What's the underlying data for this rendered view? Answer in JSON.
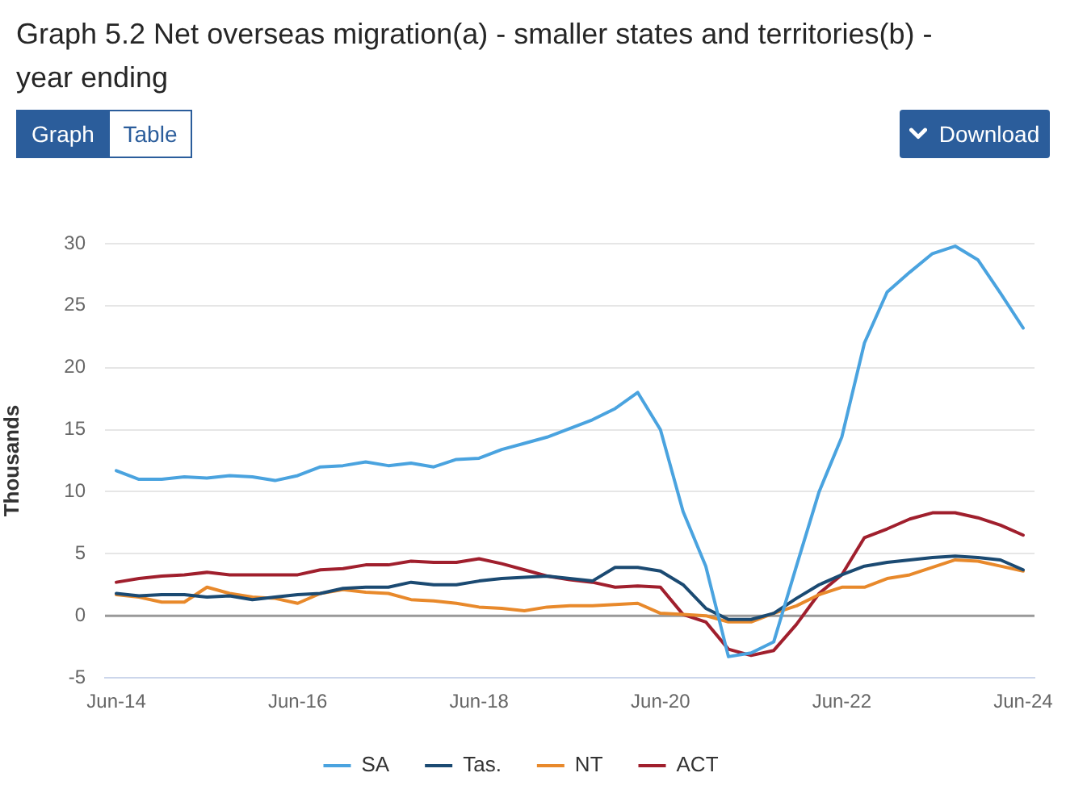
{
  "chart_data": {
    "type": "line",
    "title": "Graph 5.2 Net overseas migration(a) - smaller states and territories(b) - year ending",
    "ylabel": "Thousands",
    "annotations": [
      "Graph",
      "Table",
      "Download"
    ],
    "categories": [
      "Jun-14",
      null,
      null,
      null,
      null,
      null,
      null,
      null,
      "Jun-16",
      null,
      null,
      null,
      null,
      null,
      null,
      null,
      "Jun-18",
      null,
      null,
      null,
      null,
      null,
      null,
      null,
      "Jun-20",
      null,
      null,
      null,
      null,
      null,
      null,
      null,
      "Jun-22",
      null,
      null,
      null,
      null,
      null,
      null,
      null,
      "Jun-24"
    ],
    "series": [
      {
        "name": "SA",
        "color": "#4aa3df",
        "values": [
          11.7,
          11.0,
          11.0,
          11.2,
          11.1,
          11.3,
          11.2,
          10.9,
          11.3,
          12.0,
          12.1,
          12.4,
          12.1,
          12.3,
          12.0,
          12.6,
          12.7,
          13.4,
          13.9,
          14.4,
          15.1,
          15.8,
          16.7,
          18.0,
          15.0,
          8.4,
          4.0,
          -3.3,
          -3.0,
          -2.1,
          4.0,
          10.0,
          14.4,
          22.0,
          26.1,
          27.7,
          29.2,
          29.8,
          28.7,
          26.0,
          23.2
        ]
      },
      {
        "name": "Tas.",
        "color": "#1b4a72",
        "values": [
          1.8,
          1.6,
          1.7,
          1.7,
          1.5,
          1.6,
          1.3,
          1.5,
          1.7,
          1.8,
          2.2,
          2.3,
          2.3,
          2.7,
          2.5,
          2.5,
          2.8,
          3.0,
          3.1,
          3.2,
          3.0,
          2.8,
          3.9,
          3.9,
          3.6,
          2.5,
          0.6,
          -0.3,
          -0.3,
          0.2,
          1.4,
          2.5,
          3.3,
          4.0,
          4.3,
          4.5,
          4.7,
          4.8,
          4.7,
          4.5,
          3.7
        ]
      },
      {
        "name": "NT",
        "color": "#e8892b",
        "values": [
          1.7,
          1.5,
          1.1,
          1.1,
          2.3,
          1.8,
          1.5,
          1.4,
          1.0,
          1.8,
          2.1,
          1.9,
          1.8,
          1.3,
          1.2,
          1.0,
          0.7,
          0.6,
          0.4,
          0.7,
          0.8,
          0.8,
          0.9,
          1.0,
          0.2,
          0.1,
          0.0,
          -0.5,
          -0.5,
          0.2,
          0.8,
          1.7,
          2.3,
          2.3,
          3.0,
          3.3,
          3.9,
          4.5,
          4.4,
          4.0,
          3.6
        ]
      },
      {
        "name": "ACT",
        "color": "#a01f2d",
        "values": [
          2.7,
          3.0,
          3.2,
          3.3,
          3.5,
          3.3,
          3.3,
          3.3,
          3.3,
          3.7,
          3.8,
          4.1,
          4.1,
          4.4,
          4.3,
          4.3,
          4.6,
          4.2,
          3.7,
          3.2,
          2.9,
          2.7,
          2.3,
          2.4,
          2.3,
          0.1,
          -0.5,
          -2.7,
          -3.2,
          -2.8,
          -0.7,
          1.8,
          3.3,
          6.3,
          7.0,
          7.8,
          8.3,
          8.3,
          7.9,
          7.3,
          6.5
        ]
      }
    ],
    "ylim": [
      -5,
      30
    ],
    "yticks": [
      -5,
      0,
      5,
      10,
      15,
      20,
      25,
      30
    ],
    "ref_lines": [
      {
        "axis": "y",
        "value": 0,
        "color": "#999999"
      }
    ],
    "grid": "y",
    "legend": "bottom",
    "marker": "none",
    "line_style": "solid"
  }
}
